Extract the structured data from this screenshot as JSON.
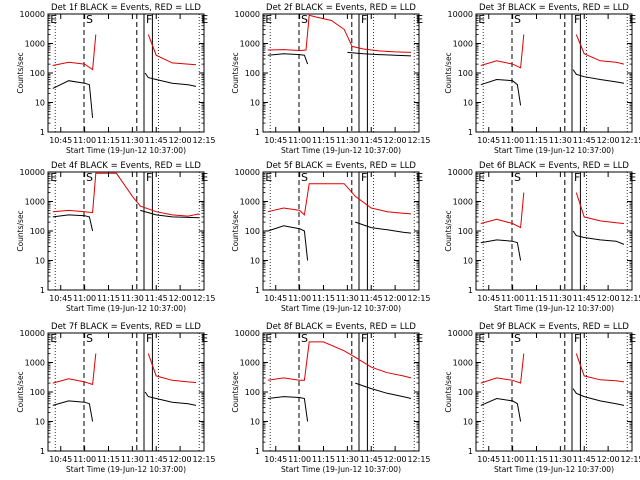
{
  "figure": {
    "xlabel": "Start Time (19-Jun-12 10:37:00)",
    "ylabel": "Counts/sec",
    "x_tick_labels": [
      "10:45",
      "11:00",
      "11:15",
      "11:30",
      "11:45",
      "12:00",
      "12:15"
    ],
    "y_tick_labels": [
      "1",
      "10",
      "100",
      "1000",
      "10000"
    ],
    "markers": [
      "E",
      "S",
      "F",
      "E"
    ],
    "colors": {
      "events": "#000000",
      "lld": "#e00000"
    }
  },
  "chart_data": [
    {
      "type": "line",
      "title": "Det 1f BLACK = Events, RED = LLD",
      "xlabel": "Start Time (19-Jun-12 10:37:00)",
      "ylabel": "Counts/sec",
      "x_domain": [
        "10:37",
        "12:15"
      ],
      "ylim": [
        1,
        10000
      ],
      "y_scale": "log",
      "series": [
        {
          "name": "Events",
          "color": "#000000",
          "x": [
            "10:40",
            "10:50",
            "11:00",
            "11:03",
            "11:05",
            "11:30",
            "11:38",
            "11:40",
            "11:45",
            "11:55",
            "12:05",
            "12:10"
          ],
          "y": [
            30,
            55,
            45,
            40,
            3,
            null,
            100,
            70,
            60,
            45,
            40,
            35
          ]
        },
        {
          "name": "LLD",
          "color": "#e00000",
          "x": [
            "10:40",
            "10:50",
            "11:00",
            "11:05",
            "11:07",
            "11:30",
            "11:40",
            "11:45",
            "11:55",
            "12:05",
            "12:10"
          ],
          "y": [
            180,
            230,
            200,
            130,
            2000,
            null,
            2000,
            400,
            220,
            200,
            190
          ]
        }
      ]
    },
    {
      "type": "line",
      "title": "Det 2f BLACK = Events, RED = LLD",
      "xlabel": "Start Time (19-Jun-12 10:37:00)",
      "ylabel": "Counts/sec",
      "x_domain": [
        "10:37",
        "12:15"
      ],
      "ylim": [
        1,
        10000
      ],
      "y_scale": "log",
      "series": [
        {
          "name": "Events",
          "color": "#000000",
          "x": [
            "10:40",
            "10:50",
            "11:00",
            "11:03",
            "11:05",
            "11:20",
            "11:30",
            "11:40",
            "11:50",
            "12:00",
            "12:10"
          ],
          "y": [
            400,
            450,
            420,
            400,
            200,
            null,
            500,
            450,
            420,
            400,
            380
          ]
        },
        {
          "name": "LLD",
          "color": "#e00000",
          "x": [
            "10:40",
            "10:50",
            "11:00",
            "11:04",
            "11:06",
            "11:10",
            "11:20",
            "11:28",
            "11:33",
            "11:40",
            "11:50",
            "12:00",
            "12:10"
          ],
          "y": [
            600,
            620,
            580,
            600,
            9000,
            8000,
            6000,
            3000,
            800,
            650,
            560,
            520,
            500
          ]
        }
      ]
    },
    {
      "type": "line",
      "title": "Det 3f BLACK = Events, RED = LLD",
      "xlabel": "Start Time (19-Jun-12 10:37:00)",
      "ylabel": "Counts/sec",
      "x_domain": [
        "10:37",
        "12:15"
      ],
      "ylim": [
        1,
        10000
      ],
      "y_scale": "log",
      "series": [
        {
          "name": "Events",
          "color": "#000000",
          "x": [
            "10:40",
            "10:50",
            "11:00",
            "11:03",
            "11:05",
            "11:30",
            "11:38",
            "11:40",
            "11:45",
            "11:55",
            "12:05",
            "12:10"
          ],
          "y": [
            40,
            60,
            55,
            40,
            8,
            null,
            130,
            90,
            75,
            60,
            50,
            45
          ]
        },
        {
          "name": "LLD",
          "color": "#e00000",
          "x": [
            "10:40",
            "10:50",
            "11:00",
            "11:05",
            "11:07",
            "11:30",
            "11:40",
            "11:45",
            "11:55",
            "12:05",
            "12:10"
          ],
          "y": [
            180,
            260,
            200,
            150,
            2000,
            null,
            2000,
            450,
            260,
            230,
            200
          ]
        }
      ]
    },
    {
      "type": "line",
      "title": "Det 4f BLACK = Events, RED = LLD",
      "xlabel": "Start Time (19-Jun-12 10:37:00)",
      "ylabel": "Counts/sec",
      "x_domain": [
        "10:37",
        "12:15"
      ],
      "ylim": [
        1,
        10000
      ],
      "y_scale": "log",
      "series": [
        {
          "name": "Events",
          "color": "#000000",
          "x": [
            "10:40",
            "10:50",
            "11:00",
            "11:03",
            "11:05",
            "11:30",
            "11:35",
            "11:45",
            "11:55",
            "12:05",
            "12:12"
          ],
          "y": [
            300,
            350,
            330,
            300,
            100,
            null,
            500,
            350,
            300,
            290,
            280
          ]
        },
        {
          "name": "LLD",
          "color": "#e00000",
          "x": [
            "10:40",
            "10:50",
            "11:00",
            "11:05",
            "11:07",
            "11:20",
            "11:30",
            "11:35",
            "11:45",
            "11:55",
            "12:05",
            "12:12"
          ],
          "y": [
            450,
            500,
            450,
            420,
            9000,
            9000,
            1500,
            700,
            450,
            350,
            320,
            380
          ]
        }
      ]
    },
    {
      "type": "line",
      "title": "Det 5f BLACK = Events, RED = LLD",
      "xlabel": "Start Time (19-Jun-12 10:37:00)",
      "ylabel": "Counts/sec",
      "x_domain": [
        "10:37",
        "12:15"
      ],
      "ylim": [
        1,
        10000
      ],
      "y_scale": "log",
      "series": [
        {
          "name": "Events",
          "color": "#000000",
          "x": [
            "10:40",
            "10:50",
            "11:00",
            "11:03",
            "11:05",
            "11:30",
            "11:35",
            "11:45",
            "11:55",
            "12:05",
            "12:10"
          ],
          "y": [
            100,
            150,
            120,
            100,
            10,
            null,
            200,
            130,
            110,
            90,
            85
          ]
        },
        {
          "name": "LLD",
          "color": "#e00000",
          "x": [
            "10:40",
            "10:50",
            "11:00",
            "11:03",
            "11:06",
            "11:15",
            "11:28",
            "11:35",
            "11:45",
            "11:55",
            "12:05",
            "12:10"
          ],
          "y": [
            450,
            600,
            500,
            350,
            4000,
            4000,
            4000,
            1500,
            600,
            450,
            400,
            380
          ]
        }
      ]
    },
    {
      "type": "line",
      "title": "Det 6f BLACK = Events, RED = LLD",
      "xlabel": "Start Time (19-Jun-12 10:37:00)",
      "ylabel": "Counts/sec",
      "x_domain": [
        "10:37",
        "12:15"
      ],
      "ylim": [
        1,
        10000
      ],
      "y_scale": "log",
      "series": [
        {
          "name": "Events",
          "color": "#000000",
          "x": [
            "10:40",
            "10:50",
            "11:00",
            "11:03",
            "11:05",
            "11:30",
            "11:38",
            "11:40",
            "11:45",
            "11:55",
            "12:05",
            "12:10"
          ],
          "y": [
            40,
            50,
            45,
            40,
            10,
            null,
            100,
            70,
            60,
            50,
            45,
            35
          ]
        },
        {
          "name": "LLD",
          "color": "#e00000",
          "x": [
            "10:40",
            "10:50",
            "11:00",
            "11:05",
            "11:07",
            "11:30",
            "11:40",
            "11:45",
            "11:55",
            "12:05",
            "12:10"
          ],
          "y": [
            180,
            250,
            180,
            130,
            2000,
            null,
            2000,
            300,
            220,
            190,
            180
          ]
        }
      ]
    },
    {
      "type": "line",
      "title": "Det 7f BLACK = Events, RED = LLD",
      "xlabel": "Start Time (19-Jun-12 10:37:00)",
      "ylabel": "Counts/sec",
      "x_domain": [
        "10:37",
        "12:15"
      ],
      "ylim": [
        1,
        10000
      ],
      "y_scale": "log",
      "series": [
        {
          "name": "Events",
          "color": "#000000",
          "x": [
            "10:40",
            "10:50",
            "11:00",
            "11:03",
            "11:05",
            "11:30",
            "11:38",
            "11:40",
            "11:45",
            "11:55",
            "12:05",
            "12:10"
          ],
          "y": [
            35,
            50,
            45,
            40,
            10,
            null,
            100,
            70,
            60,
            45,
            40,
            35
          ]
        },
        {
          "name": "LLD",
          "color": "#e00000",
          "x": [
            "10:40",
            "10:50",
            "11:00",
            "11:05",
            "11:07",
            "11:30",
            "11:40",
            "11:45",
            "11:55",
            "12:05",
            "12:10"
          ],
          "y": [
            200,
            280,
            220,
            180,
            2000,
            null,
            2000,
            350,
            250,
            220,
            210
          ]
        }
      ]
    },
    {
      "type": "line",
      "title": "Det 8f BLACK = Events, RED = LLD",
      "xlabel": "Start Time (19-Jun-12 10:37:00)",
      "ylabel": "Counts/sec",
      "x_domain": [
        "10:37",
        "12:15"
      ],
      "ylim": [
        1,
        10000
      ],
      "y_scale": "log",
      "series": [
        {
          "name": "Events",
          "color": "#000000",
          "x": [
            "10:40",
            "10:50",
            "11:00",
            "11:03",
            "11:05",
            "11:30",
            "11:35",
            "11:45",
            "11:55",
            "12:05",
            "12:10"
          ],
          "y": [
            60,
            70,
            65,
            60,
            10,
            null,
            200,
            130,
            90,
            70,
            60
          ]
        },
        {
          "name": "LLD",
          "color": "#e00000",
          "x": [
            "10:40",
            "10:50",
            "11:00",
            "11:03",
            "11:06",
            "11:15",
            "11:28",
            "11:35",
            "11:45",
            "11:55",
            "12:05",
            "12:10"
          ],
          "y": [
            250,
            300,
            250,
            250,
            5000,
            5000,
            2500,
            1500,
            700,
            450,
            350,
            300
          ]
        }
      ]
    },
    {
      "type": "line",
      "title": "Det 9f BLACK = Events, RED = LLD",
      "xlabel": "Start Time (19-Jun-12 10:37:00)",
      "ylabel": "Counts/sec",
      "x_domain": [
        "10:37",
        "12:15"
      ],
      "ylim": [
        1,
        10000
      ],
      "y_scale": "log",
      "series": [
        {
          "name": "Events",
          "color": "#000000",
          "x": [
            "10:40",
            "10:50",
            "11:00",
            "11:03",
            "11:05",
            "11:30",
            "11:38",
            "11:40",
            "11:45",
            "11:55",
            "12:05",
            "12:10"
          ],
          "y": [
            35,
            60,
            50,
            40,
            10,
            null,
            130,
            90,
            70,
            50,
            40,
            35
          ]
        },
        {
          "name": "LLD",
          "color": "#e00000",
          "x": [
            "10:40",
            "10:50",
            "11:00",
            "11:05",
            "11:07",
            "11:30",
            "11:40",
            "11:45",
            "11:55",
            "12:05",
            "12:10"
          ],
          "y": [
            200,
            300,
            250,
            200,
            2000,
            null,
            2000,
            350,
            260,
            240,
            220
          ]
        }
      ]
    }
  ]
}
